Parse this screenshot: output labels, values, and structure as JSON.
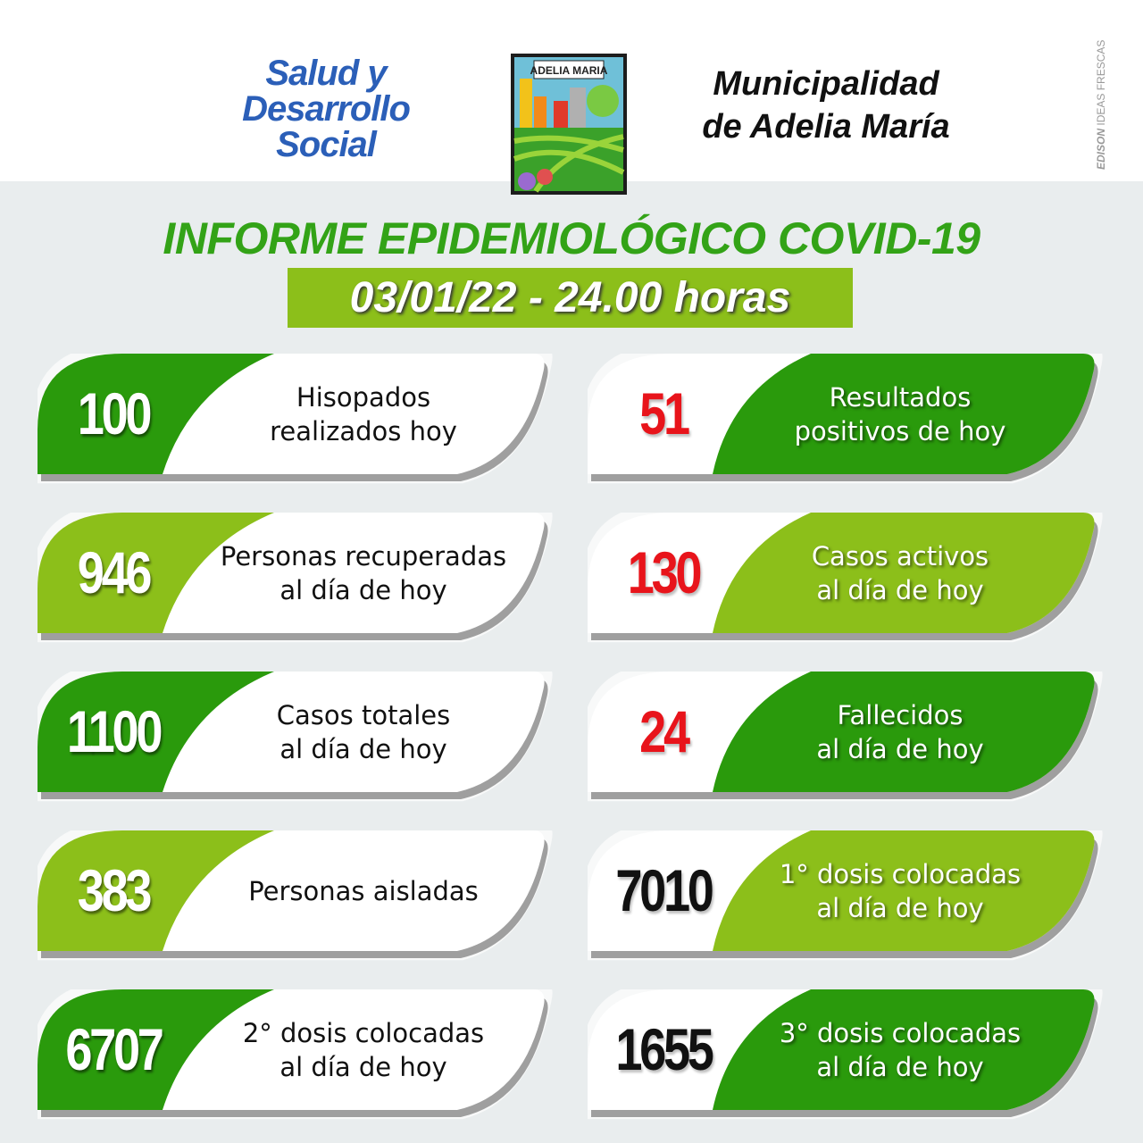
{
  "header": {
    "ministry_lines": [
      "Salud y",
      "Desarrollo",
      "Social"
    ],
    "logo_text": "ADELIA MARIA",
    "municipality_lines": [
      "Municipalidad",
      "de Adelia María"
    ],
    "credit_bold": "EDISON",
    "credit_rest": "IDEAS FRESCAS"
  },
  "title": "INFORME EPIDEMIOLÓGICO COVID-19",
  "date_line": "03/01/22 - 24.00 horas",
  "colors": {
    "dark_green": "#2a9a0c",
    "light_green": "#8cbf1a",
    "red": "#e8141b",
    "blue": "#2b5fb8"
  },
  "cards": [
    {
      "value": "100",
      "label": [
        "Hisopados",
        "realizados hoy"
      ],
      "column": "left",
      "fill": "dark_green",
      "value_color": "#ffffff"
    },
    {
      "value": "51",
      "label": [
        "Resultados",
        "positivos de hoy"
      ],
      "column": "right",
      "fill": "dark_green",
      "value_color": "#e8141b"
    },
    {
      "value": "946",
      "label": [
        "Personas recuperadas",
        "al día de hoy"
      ],
      "column": "left",
      "fill": "light_green",
      "value_color": "#ffffff"
    },
    {
      "value": "130",
      "label": [
        "Casos activos",
        "al día de hoy"
      ],
      "column": "right",
      "fill": "light_green",
      "value_color": "#e8141b"
    },
    {
      "value": "1100",
      "label": [
        "Casos totales",
        "al día de hoy"
      ],
      "column": "left",
      "fill": "dark_green",
      "value_color": "#ffffff"
    },
    {
      "value": "24",
      "label": [
        "Fallecidos",
        "al día de hoy"
      ],
      "column": "right",
      "fill": "dark_green",
      "value_color": "#e8141b"
    },
    {
      "value": "383",
      "label": [
        "Personas aisladas"
      ],
      "column": "left",
      "fill": "light_green",
      "value_color": "#ffffff"
    },
    {
      "value": "7010",
      "label": [
        "1° dosis colocadas",
        "al día de hoy"
      ],
      "column": "right",
      "fill": "light_green",
      "value_color": "#111111"
    },
    {
      "value": "6707",
      "label": [
        "2° dosis colocadas",
        "al día de hoy"
      ],
      "column": "left",
      "fill": "dark_green",
      "value_color": "#ffffff"
    },
    {
      "value": "1655",
      "label": [
        "3° dosis colocadas",
        "al día de hoy"
      ],
      "column": "right",
      "fill": "dark_green",
      "value_color": "#111111"
    }
  ]
}
